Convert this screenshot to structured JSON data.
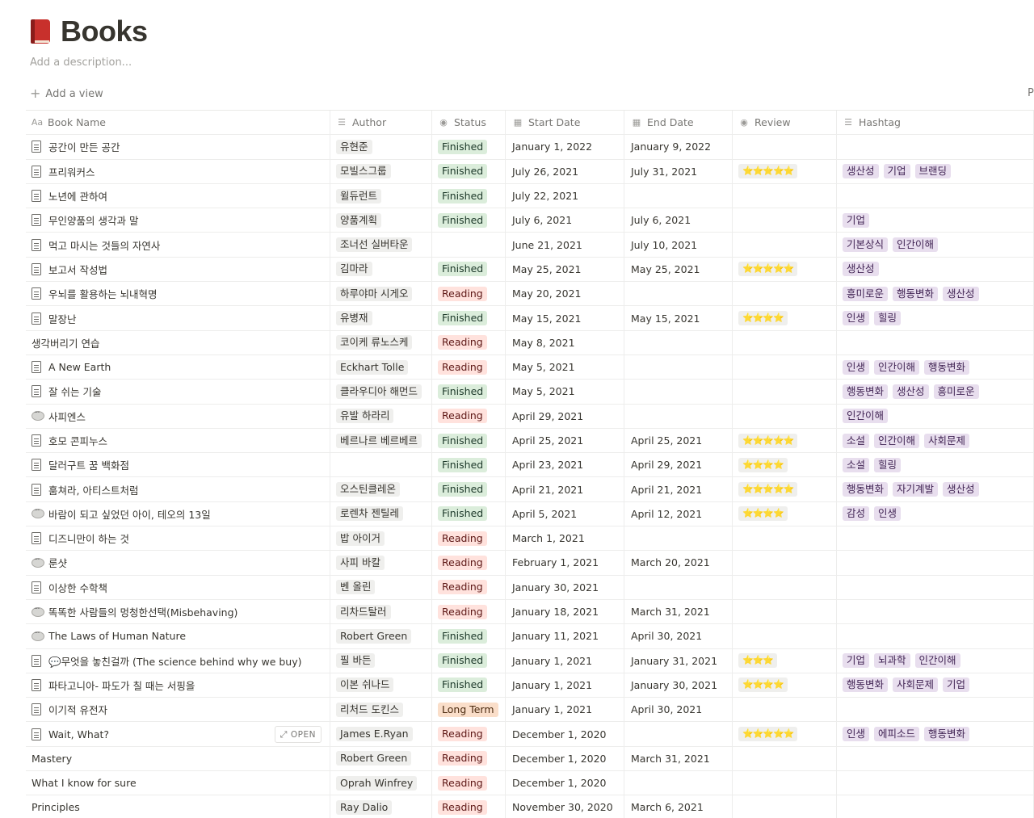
{
  "page": {
    "title": "Books",
    "description_placeholder": "Add a description...",
    "add_view_label": "Add a view",
    "edge_char": "P"
  },
  "columns": {
    "name": "Book Name",
    "author": "Author",
    "status": "Status",
    "start": "Start Date",
    "end": "End Date",
    "review": "Review",
    "hashtag": "Hashtag",
    "name_icon": "Aa"
  },
  "open_label": "OPEN",
  "rows": [
    {
      "icon": "doc",
      "name": "공간이 만든 공간",
      "author": "유현준",
      "status": "Finished",
      "start": "January 1, 2022",
      "end": "January 9, 2022",
      "review": "",
      "tags": []
    },
    {
      "icon": "doc",
      "name": "프리워커스",
      "author": "모빌스그룹",
      "status": "Finished",
      "start": "July 26, 2021",
      "end": "July 31, 2021",
      "review": "⭐⭐⭐⭐⭐",
      "tags": [
        "생산성",
        "기업",
        "브랜딩"
      ]
    },
    {
      "icon": "doc",
      "name": "노년에 관하여",
      "author": "윌듀런트",
      "status": "Finished",
      "start": "July 22, 2021",
      "end": "",
      "review": "",
      "tags": []
    },
    {
      "icon": "doc",
      "name": "무인양품의 생각과 말",
      "author": "양품계획",
      "status": "Finished",
      "start": "July 6, 2021",
      "end": "July 6, 2021",
      "review": "",
      "tags": [
        "기업"
      ]
    },
    {
      "icon": "doc",
      "name": "먹고 마시는 것들의 자연사",
      "author": "조너선 실버타운",
      "status": "",
      "start": "June 21, 2021",
      "end": "July 10, 2021",
      "review": "",
      "tags": [
        "기본상식",
        "인간이해"
      ]
    },
    {
      "icon": "doc",
      "name": "보고서 작성법",
      "author": "김마라",
      "status": "Finished",
      "start": "May 25, 2021",
      "end": "May 25, 2021",
      "review": "⭐⭐⭐⭐⭐",
      "tags": [
        "생산성"
      ]
    },
    {
      "icon": "doc",
      "name": "우뇌를 활용하는 뇌내혁명",
      "author": "하루야마 시게오",
      "status": "Reading",
      "start": "May 20, 2021",
      "end": "",
      "review": "",
      "tags": [
        "흥미로운",
        "행동변화",
        "생산성"
      ]
    },
    {
      "icon": "doc",
      "name": "말장난",
      "author": "유병재",
      "status": "Finished",
      "start": "May 15, 2021",
      "end": "May 15, 2021",
      "review": "⭐⭐⭐⭐",
      "tags": [
        "인생",
        "힐링"
      ]
    },
    {
      "icon": "none",
      "name": "생각버리기 연습",
      "author": "코이케 류노스케",
      "status": "Reading",
      "start": "May 8, 2021",
      "end": "",
      "review": "",
      "tags": []
    },
    {
      "icon": "doc",
      "name": "A New Earth",
      "author": "Eckhart Tolle",
      "status": "Reading",
      "start": "May 5, 2021",
      "end": "",
      "review": "",
      "tags": [
        "인생",
        "인간이해",
        "행동변화"
      ]
    },
    {
      "icon": "doc",
      "name": "잘 쉬는 기술",
      "author": "클라우디아 해먼드",
      "status": "Finished",
      "start": "May 5, 2021",
      "end": "",
      "review": "",
      "tags": [
        "행동변화",
        "생산성",
        "흥미로운"
      ]
    },
    {
      "icon": "speech",
      "name": "사피엔스",
      "author": "유발 하라리",
      "status": "Reading",
      "start": "April 29, 2021",
      "end": "",
      "review": "",
      "tags": [
        "인간이해"
      ]
    },
    {
      "icon": "doc",
      "name": "호모 콘피누스",
      "author": "베르나르 베르베르",
      "status": "Finished",
      "start": "April 25, 2021",
      "end": "April 25, 2021",
      "review": "⭐⭐⭐⭐⭐",
      "tags": [
        "소설",
        "인간이해",
        "사회문제"
      ]
    },
    {
      "icon": "doc",
      "name": "달러구트 꿈 백화점",
      "author": "",
      "status": "Finished",
      "start": "April 23, 2021",
      "end": "April 29, 2021",
      "review": "⭐⭐⭐⭐",
      "tags": [
        "소설",
        "힐링"
      ]
    },
    {
      "icon": "doc",
      "name": "훔쳐라, 아티스트처럼",
      "author": "오스틴클레온",
      "status": "Finished",
      "start": "April 21, 2021",
      "end": "April 21, 2021",
      "review": "⭐⭐⭐⭐⭐",
      "tags": [
        "행동변화",
        "자기계발",
        "생산성"
      ]
    },
    {
      "icon": "speech",
      "name": "바람이 되고 싶었던 아이, 테오의 13일",
      "author": "로렌차 젠틸레",
      "status": "Finished",
      "start": "April 5, 2021",
      "end": "April 12, 2021",
      "review": "⭐⭐⭐⭐",
      "tags": [
        "감성",
        "인생"
      ]
    },
    {
      "icon": "doc",
      "name": "디즈니만이 하는 것",
      "author": "밥 아이거",
      "status": "Reading",
      "start": "March 1, 2021",
      "end": "",
      "review": "",
      "tags": []
    },
    {
      "icon": "speech",
      "name": "룬샷",
      "author": "사피 바칼",
      "status": "Reading",
      "start": "February 1, 2021",
      "end": "March 20, 2021",
      "review": "",
      "tags": []
    },
    {
      "icon": "doc",
      "name": "이상한 수학책",
      "author": "벤 올린",
      "status": "Reading",
      "start": "January 30, 2021",
      "end": "",
      "review": "",
      "tags": []
    },
    {
      "icon": "speech",
      "name": "똑똑한 사람들의 멍청한선택(Misbehaving)",
      "author": "리차드탈러",
      "status": "Reading",
      "start": "January 18, 2021",
      "end": "March 31, 2021",
      "review": "",
      "tags": []
    },
    {
      "icon": "speech",
      "name": "The Laws of Human Nature",
      "author": "Robert Green",
      "status": "Finished",
      "start": "January 11, 2021",
      "end": "April 30, 2021",
      "review": "",
      "tags": []
    },
    {
      "icon": "doc",
      "name": "💬무엇을 놓친걸까 (The science behind why we buy)",
      "author": "필 바든",
      "status": "Finished",
      "start": "January 1, 2021",
      "end": "January 31, 2021",
      "review": "⭐⭐⭐",
      "tags": [
        "기업",
        "뇌과학",
        "인간이해"
      ]
    },
    {
      "icon": "doc",
      "name": "파타고니아- 파도가 칠 때는 서핑을",
      "author": "이본 쉬나드",
      "status": "Finished",
      "start": "January 1, 2021",
      "end": "January 30, 2021",
      "review": "⭐⭐⭐⭐",
      "tags": [
        "행동변화",
        "사회문제",
        "기업"
      ]
    },
    {
      "icon": "doc",
      "name": "이기적 유전자",
      "author": "리처드 도킨스",
      "status": "Long Term",
      "start": "January 1, 2021",
      "end": "April 30, 2021",
      "review": "",
      "tags": []
    },
    {
      "icon": "doc",
      "name": "Wait, What?",
      "author": "James E.Ryan",
      "status": "Reading",
      "start": "December 1, 2020",
      "end": "",
      "review": "⭐⭐⭐⭐⭐",
      "tags": [
        "인생",
        "에피소드",
        "행동변화"
      ],
      "hover": true
    },
    {
      "icon": "none",
      "name": "Mastery",
      "author": "Robert Green",
      "status": "Reading",
      "start": "December 1, 2020",
      "end": "March 31, 2021",
      "review": "",
      "tags": []
    },
    {
      "icon": "none",
      "name": "What I know for sure",
      "author": "Oprah Winfrey",
      "status": "Reading",
      "start": "December 1, 2020",
      "end": "",
      "review": "",
      "tags": []
    },
    {
      "icon": "none",
      "name": "Principles",
      "author": "Ray Dalio",
      "status": "Reading",
      "start": "November 30, 2020",
      "end": "March 6, 2021",
      "review": "",
      "tags": []
    }
  ]
}
